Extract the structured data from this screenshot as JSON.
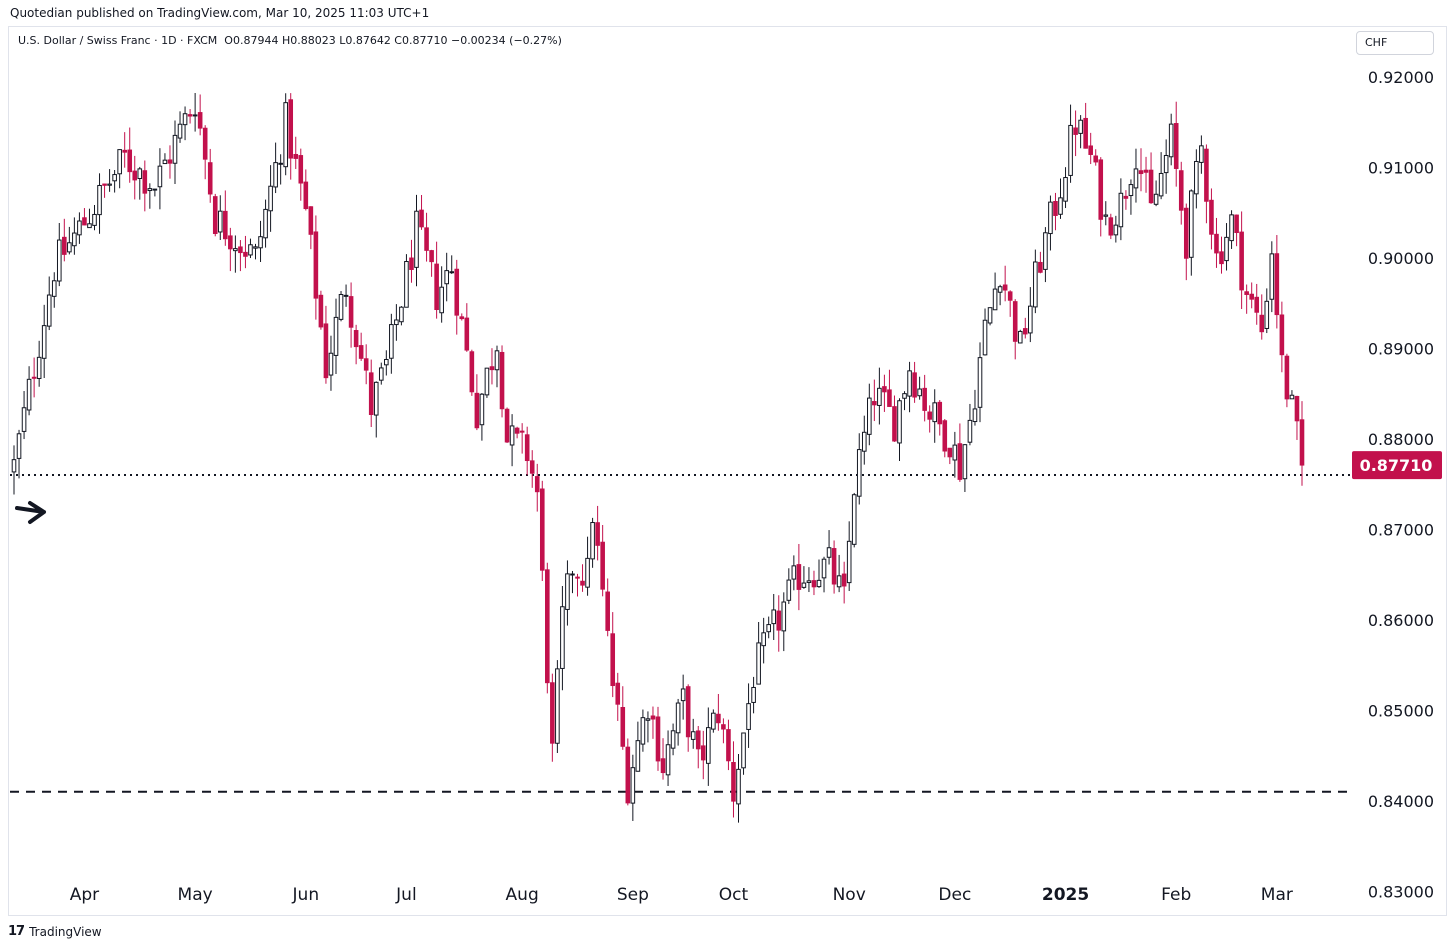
{
  "header": {
    "published": "Quotedian published on TradingView.com, Mar 10, 2025 11:03 UTC+1",
    "symbol": "U.S. Dollar / Swiss Franc · 1D · FXCM",
    "ohlc": "O0.87944 H0.88023 L0.87642 C0.87710 −0.00234 (−0.27%)",
    "currency_button": "CHF"
  },
  "footer": {
    "logo_glyph": "17",
    "brand": "TradingView"
  },
  "colors": {
    "up": "#131722",
    "down": "#c2114c",
    "price_tag": "#c2114c",
    "grid": "#ffffff"
  },
  "chart_data": {
    "type": "candlestick",
    "title": "U.S. Dollar / Swiss Franc · 1D · FXCM",
    "ylabel": "CHF",
    "ylim": [
      0.8275,
      0.9255
    ],
    "y_ticks": [
      "0.92000",
      "0.91000",
      "0.90000",
      "0.89000",
      "0.88000",
      "0.87000",
      "0.86000",
      "0.85000",
      "0.84000",
      "0.83000"
    ],
    "x_ticks": [
      {
        "label": "Apr",
        "bar": 14
      },
      {
        "label": "May",
        "bar": 36
      },
      {
        "label": "Jun",
        "bar": 58
      },
      {
        "label": "Jul",
        "bar": 78
      },
      {
        "label": "Aug",
        "bar": 101
      },
      {
        "label": "Sep",
        "bar": 123
      },
      {
        "label": "Oct",
        "bar": 143
      },
      {
        "label": "Nov",
        "bar": 166
      },
      {
        "label": "Dec",
        "bar": 187
      },
      {
        "label": "2025",
        "bar": 209,
        "bold": true
      },
      {
        "label": "Feb",
        "bar": 231
      },
      {
        "label": "Mar",
        "bar": 251
      }
    ],
    "last_price": "0.87710",
    "last_value": 0.8771,
    "horizontal_lines": [
      {
        "value": 0.876,
        "style": "dotted"
      },
      {
        "value": 0.841,
        "style": "dashed"
      }
    ],
    "anchors": [
      {
        "bar": 0,
        "value": 0.877
      },
      {
        "bar": 8,
        "value": 0.899
      },
      {
        "bar": 14,
        "value": 0.904
      },
      {
        "bar": 22,
        "value": 0.911
      },
      {
        "bar": 28,
        "value": 0.908
      },
      {
        "bar": 36,
        "value": 0.9175
      },
      {
        "bar": 40,
        "value": 0.9045
      },
      {
        "bar": 48,
        "value": 0.9
      },
      {
        "bar": 54,
        "value": 0.915
      },
      {
        "bar": 58,
        "value": 0.905
      },
      {
        "bar": 62,
        "value": 0.888
      },
      {
        "bar": 66,
        "value": 0.897
      },
      {
        "bar": 71,
        "value": 0.8835
      },
      {
        "bar": 74,
        "value": 0.888
      },
      {
        "bar": 80,
        "value": 0.903
      },
      {
        "bar": 84,
        "value": 0.896
      },
      {
        "bar": 87,
        "value": 0.899
      },
      {
        "bar": 92,
        "value": 0.883
      },
      {
        "bar": 96,
        "value": 0.891
      },
      {
        "bar": 98,
        "value": 0.88
      },
      {
        "bar": 102,
        "value": 0.8785
      },
      {
        "bar": 104,
        "value": 0.874
      },
      {
        "bar": 107,
        "value": 0.845
      },
      {
        "bar": 109,
        "value": 0.86
      },
      {
        "bar": 111,
        "value": 0.866
      },
      {
        "bar": 114,
        "value": 0.865
      },
      {
        "bar": 115,
        "value": 0.872
      },
      {
        "bar": 119,
        "value": 0.853
      },
      {
        "bar": 122,
        "value": 0.842
      },
      {
        "bar": 126,
        "value": 0.851
      },
      {
        "bar": 129,
        "value": 0.844
      },
      {
        "bar": 133,
        "value": 0.851
      },
      {
        "bar": 136,
        "value": 0.844
      },
      {
        "bar": 140,
        "value": 0.85
      },
      {
        "bar": 143,
        "value": 0.841
      },
      {
        "bar": 147,
        "value": 0.854
      },
      {
        "bar": 151,
        "value": 0.859
      },
      {
        "bar": 156,
        "value": 0.865
      },
      {
        "bar": 162,
        "value": 0.866
      },
      {
        "bar": 165,
        "value": 0.862
      },
      {
        "bar": 167,
        "value": 0.875
      },
      {
        "bar": 171,
        "value": 0.885
      },
      {
        "bar": 175,
        "value": 0.882
      },
      {
        "bar": 178,
        "value": 0.888
      },
      {
        "bar": 182,
        "value": 0.883
      },
      {
        "bar": 186,
        "value": 0.88
      },
      {
        "bar": 188,
        "value": 0.877
      },
      {
        "bar": 190,
        "value": 0.882
      },
      {
        "bar": 193,
        "value": 0.892
      },
      {
        "bar": 196,
        "value": 0.899
      },
      {
        "bar": 200,
        "value": 0.89
      },
      {
        "bar": 204,
        "value": 0.9
      },
      {
        "bar": 208,
        "value": 0.908
      },
      {
        "bar": 211,
        "value": 0.915
      },
      {
        "bar": 214,
        "value": 0.911
      },
      {
        "bar": 217,
        "value": 0.904
      },
      {
        "bar": 220,
        "value": 0.906
      },
      {
        "bar": 223,
        "value": 0.912
      },
      {
        "bar": 226,
        "value": 0.905
      },
      {
        "bar": 230,
        "value": 0.913
      },
      {
        "bar": 233,
        "value": 0.902
      },
      {
        "bar": 236,
        "value": 0.912
      },
      {
        "bar": 239,
        "value": 0.9
      },
      {
        "bar": 242,
        "value": 0.904
      },
      {
        "bar": 245,
        "value": 0.896
      },
      {
        "bar": 248,
        "value": 0.892
      },
      {
        "bar": 250,
        "value": 0.901
      },
      {
        "bar": 252,
        "value": 0.888
      },
      {
        "bar": 254,
        "value": 0.883
      },
      {
        "bar": 256,
        "value": 0.8771
      }
    ]
  }
}
